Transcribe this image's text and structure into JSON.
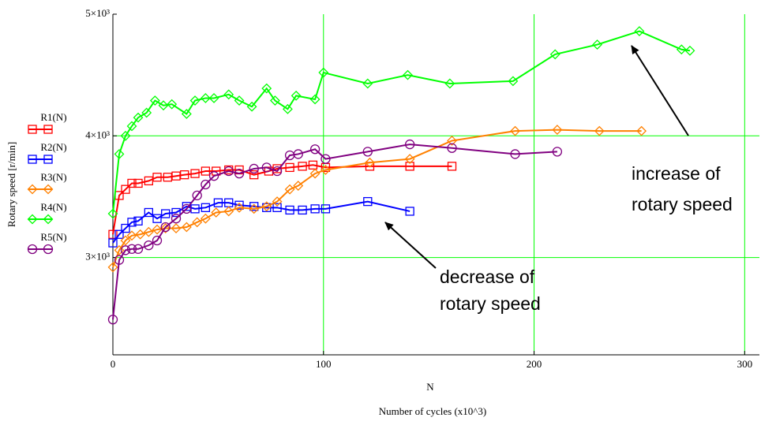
{
  "chart_data": {
    "type": "line",
    "ylabel": "Rotary speed [r/min]",
    "xlabel": "N",
    "xlabel2": "Number of cycles (x10^3)",
    "xlim": [
      0,
      307
    ],
    "ylim": [
      2200,
      5000
    ],
    "xticks": [
      0,
      100,
      200,
      300
    ],
    "yticks": [
      {
        "value": 3000,
        "label": "3×10³"
      },
      {
        "value": 4000,
        "label": "4×10³"
      },
      {
        "value": 5000,
        "label": "5×10³"
      }
    ],
    "grid": true,
    "grid_color": "#00ff00",
    "annotations": [
      {
        "lines": [
          "increase of",
          "rotary speed"
        ]
      },
      {
        "lines": [
          "decrease of",
          "rotary speed"
        ]
      }
    ],
    "series": [
      {
        "name": "R1(N)",
        "color": "#ff0000",
        "marker": "square",
        "x": [
          0,
          3,
          6,
          9,
          12,
          17,
          21,
          26,
          30,
          34,
          39,
          44,
          49,
          55,
          60,
          67,
          74,
          78,
          84,
          90,
          95,
          101,
          122,
          141,
          161
        ],
        "values": [
          3190,
          3510,
          3560,
          3610,
          3610,
          3630,
          3660,
          3660,
          3670,
          3680,
          3690,
          3710,
          3710,
          3720,
          3720,
          3680,
          3710,
          3730,
          3740,
          3750,
          3760,
          3740,
          3750,
          3750,
          3750
        ]
      },
      {
        "name": "R2(N)",
        "color": "#0000ff",
        "marker": "square",
        "x": [
          0,
          3,
          6,
          9,
          12,
          17,
          21,
          25,
          30,
          35,
          39,
          44,
          50,
          55,
          60,
          67,
          73,
          78,
          84,
          90,
          96,
          101,
          121,
          141
        ],
        "values": [
          3120,
          3190,
          3240,
          3290,
          3300,
          3370,
          3320,
          3360,
          3370,
          3420,
          3400,
          3410,
          3450,
          3450,
          3430,
          3420,
          3410,
          3410,
          3390,
          3390,
          3400,
          3400,
          3460,
          3380
        ]
      },
      {
        "name": "R3(N)",
        "color": "#ff8000",
        "marker": "diamond",
        "x": [
          0,
          3,
          6,
          9,
          13,
          17,
          21,
          25,
          30,
          35,
          40,
          44,
          49,
          55,
          60,
          67,
          73,
          78,
          84,
          88,
          96,
          101,
          122,
          141,
          161,
          191,
          211,
          231,
          251
        ],
        "values": [
          2920,
          3060,
          3140,
          3180,
          3190,
          3210,
          3230,
          3240,
          3240,
          3250,
          3290,
          3320,
          3370,
          3380,
          3410,
          3400,
          3420,
          3460,
          3560,
          3590,
          3690,
          3720,
          3780,
          3810,
          3960,
          4040,
          4050,
          4040,
          4040
        ]
      },
      {
        "name": "R4(N)",
        "color": "#00ff00",
        "marker": "diamond",
        "x": [
          0,
          3,
          6,
          9,
          12,
          16,
          20,
          24,
          28,
          35,
          39,
          44,
          48,
          55,
          60,
          66,
          73,
          77,
          83,
          87,
          96,
          100,
          121,
          140,
          160,
          190,
          210,
          230,
          250,
          270,
          274
        ],
        "values": [
          3360,
          3850,
          4000,
          4080,
          4150,
          4190,
          4290,
          4250,
          4260,
          4180,
          4290,
          4310,
          4310,
          4340,
          4290,
          4240,
          4390,
          4290,
          4220,
          4330,
          4300,
          4520,
          4430,
          4500,
          4430,
          4450,
          4670,
          4750,
          4860,
          4710,
          4700
        ]
      },
      {
        "name": "R5(N)",
        "color": "#800080",
        "marker": "circle",
        "x": [
          0,
          3,
          6,
          9,
          12,
          17,
          21,
          25,
          30,
          35,
          40,
          44,
          48,
          55,
          60,
          67,
          73,
          78,
          84,
          88,
          96,
          101,
          121,
          141,
          161,
          191,
          211
        ],
        "values": [
          2490,
          2980,
          3060,
          3070,
          3070,
          3100,
          3140,
          3250,
          3320,
          3400,
          3510,
          3600,
          3670,
          3710,
          3690,
          3730,
          3740,
          3710,
          3840,
          3850,
          3890,
          3810,
          3870,
          3930,
          3900,
          3850,
          3870
        ]
      }
    ]
  }
}
